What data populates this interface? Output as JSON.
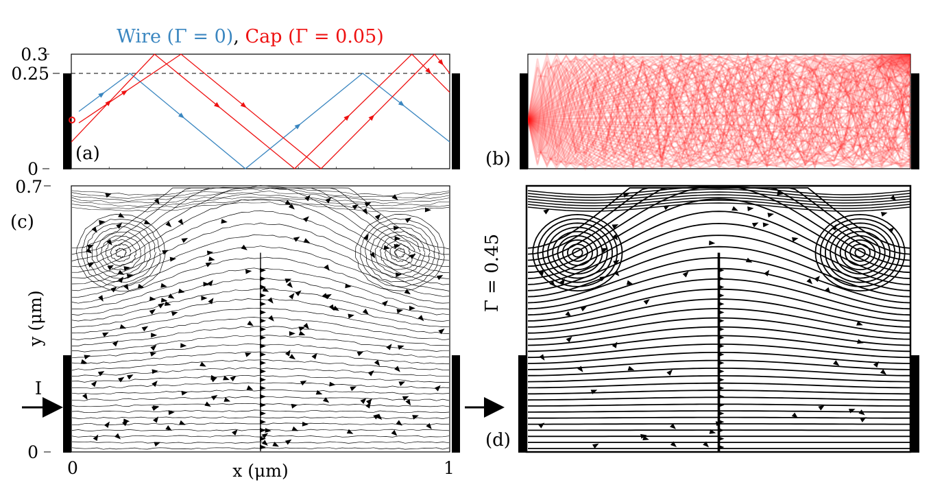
{
  "figure": {
    "title_parts": [
      {
        "text": "Wire (Γ = 0)",
        "color": "#3a86c0"
      },
      {
        "text": ", ",
        "color": "#000000"
      },
      {
        "text": "Cap (Γ = 0.05)",
        "color": "#ee1111"
      }
    ]
  },
  "panel_a": {
    "label": "(a)",
    "yticks": [
      "0.3",
      "0.25",
      "0"
    ],
    "dashed_y": 0.25
  },
  "panel_b": {
    "label": "(b)"
  },
  "panel_c": {
    "label": "(c)",
    "ytick_top": "0.7",
    "ytick_bottom": "0",
    "ylabel": "y (μm)",
    "xlabel": "x (μm)",
    "xticks": [
      "0",
      "1"
    ],
    "current_label": "I"
  },
  "panel_d": {
    "label": "(d)",
    "gamma_label": "Γ = 0.45"
  },
  "chart_data": [
    {
      "type": "line",
      "panel": "a",
      "title": "Wire (Γ = 0), Cap (Γ = 0.05)",
      "xlim": [
        0,
        1
      ],
      "ylim": [
        0,
        0.3
      ],
      "series": [
        {
          "name": "Wire (Γ = 0)",
          "color": "#3a86c0",
          "x": [
            0.02,
            0.155,
            0.46,
            0.77,
            1.0
          ],
          "y": [
            0.15,
            0.25,
            0.0,
            0.25,
            0.07
          ]
        },
        {
          "name": "Cap (Γ = 0.05) trajectory 1",
          "color": "#ee1111",
          "x": [
            0.0,
            0.22,
            0.59,
            0.9,
            1.0
          ],
          "y": [
            0.07,
            0.3,
            0.0,
            0.3,
            0.2
          ]
        },
        {
          "name": "Cap (Γ = 0.05) trajectory 2",
          "color": "#ee1111",
          "x": [
            0.02,
            0.29,
            0.66,
            0.96,
            1.0
          ],
          "y": [
            0.12,
            0.3,
            0.0,
            0.3,
            0.25
          ]
        }
      ],
      "annotations": [
        "dashed line at y = 0.25",
        "source point at (0, 0.13)"
      ]
    },
    {
      "type": "heatmap",
      "panel": "b",
      "description_series": "red ray fan from left electrode",
      "xlim": [
        0,
        1
      ],
      "ylim": [
        0,
        0.3
      ]
    },
    {
      "type": "streamline",
      "panel": "c",
      "xlabel": "x (μm)",
      "ylabel": "y (μm)",
      "xlim": [
        0,
        1
      ],
      "ylim": [
        0,
        0.7
      ],
      "xticks": [
        0,
        1
      ],
      "yticks": [
        0,
        0.7
      ]
    },
    {
      "type": "streamline",
      "panel": "d",
      "gamma": 0.45,
      "xlim": [
        0,
        1
      ],
      "ylim": [
        0,
        0.7
      ]
    }
  ]
}
